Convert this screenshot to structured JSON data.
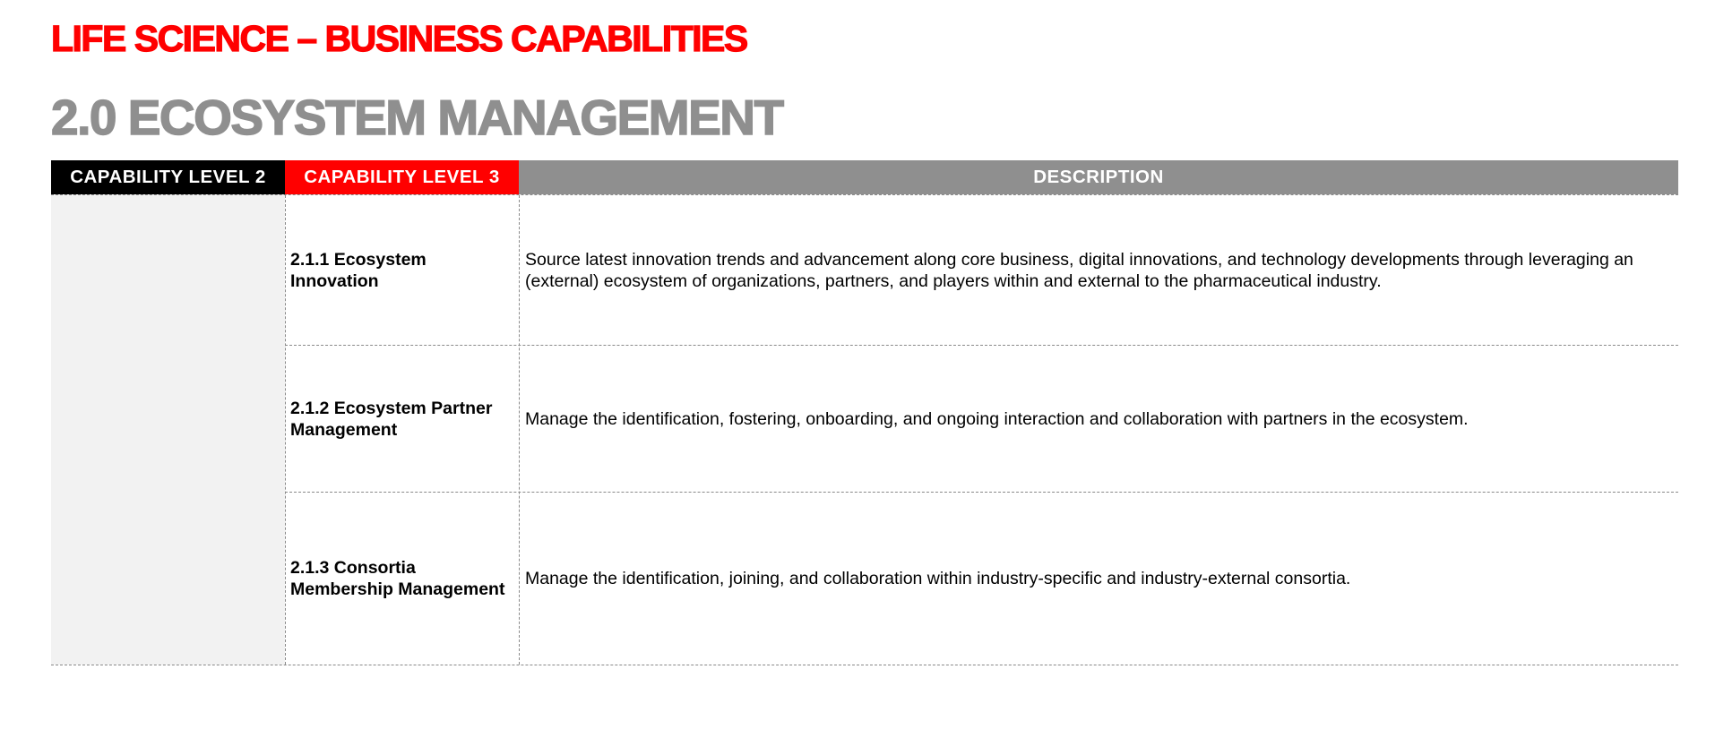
{
  "header": {
    "title": "LIFE SCIENCE – BUSINESS CAPABILITIES",
    "subtitle": "2.0 ECOSYSTEM MANAGEMENT"
  },
  "table": {
    "columns": [
      "CAPABILITY LEVEL 2",
      "CAPABILITY LEVEL 3",
      "DESCRIPTION"
    ],
    "rows": [
      {
        "name": "2.1.1 Ecosystem Innovation",
        "description": "Source latest innovation trends and advancement along core business, digital innovations, and technology developments through leveraging an (external) ecosystem of organizations, partners, and players within and external to the pharmaceutical industry."
      },
      {
        "name": "2.1.2 Ecosystem Partner Management",
        "description": "Manage the identification, fostering, onboarding, and ongoing interaction and collaboration with partners in the ecosystem."
      },
      {
        "name": "2.1.3 Consortia Membership Management",
        "description": "Manage the identification, joining, and collaboration within industry-specific and industry-external consortia."
      }
    ]
  },
  "colors": {
    "title": "#ff0000",
    "subtitle": "#8f8f8f",
    "header_level2": "#000000",
    "header_level3": "#ff0000",
    "header_description": "#8f8f8f",
    "level2_fill": "#f2f2f2"
  }
}
